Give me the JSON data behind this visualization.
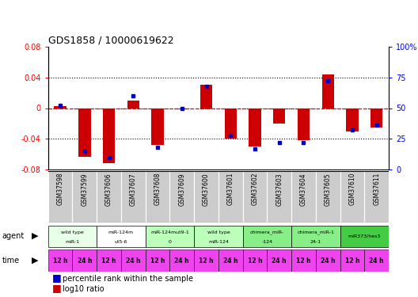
{
  "title": "GDS1858 / 10000619622",
  "samples": [
    "GSM37598",
    "GSM37599",
    "GSM37606",
    "GSM37607",
    "GSM37608",
    "GSM37609",
    "GSM37600",
    "GSM37601",
    "GSM37602",
    "GSM37603",
    "GSM37604",
    "GSM37605",
    "GSM37610",
    "GSM37611"
  ],
  "log10_ratio": [
    0.003,
    -0.063,
    -0.072,
    0.01,
    -0.048,
    -0.002,
    0.03,
    -0.04,
    -0.05,
    -0.02,
    -0.042,
    0.044,
    -0.03,
    -0.025
  ],
  "percentile_rank": [
    52,
    15,
    10,
    60,
    18,
    50,
    68,
    28,
    17,
    22,
    22,
    72,
    32,
    36
  ],
  "ylim": [
    -0.08,
    0.08
  ],
  "pct_ylim": [
    0,
    100
  ],
  "yticks_left": [
    -0.08,
    -0.04,
    0,
    0.04,
    0.08
  ],
  "yticks_right": [
    0,
    25,
    50,
    75,
    100
  ],
  "bar_color": "#cc0000",
  "dot_color": "#0000cc",
  "bar_width": 0.5,
  "agents": [
    {
      "label": "wild type\nmiR-1",
      "start": 0,
      "end": 2,
      "color": "#e8ffe8"
    },
    {
      "label": "miR-124m\nut5-6",
      "start": 2,
      "end": 4,
      "color": "#ffffff"
    },
    {
      "label": "miR-124mut9-1\n0",
      "start": 4,
      "end": 6,
      "color": "#bbffbb"
    },
    {
      "label": "wild type\nmiR-124",
      "start": 6,
      "end": 8,
      "color": "#bbffbb"
    },
    {
      "label": "chimera_miR-\n-124",
      "start": 8,
      "end": 10,
      "color": "#88ee88"
    },
    {
      "label": "chimera_miR-1\n24-1",
      "start": 10,
      "end": 12,
      "color": "#88ee88"
    },
    {
      "label": "miR373/hes3",
      "start": 12,
      "end": 14,
      "color": "#44cc44"
    }
  ],
  "times": [
    "12 h",
    "24 h",
    "12 h",
    "24 h",
    "12 h",
    "24 h",
    "12 h",
    "24 h",
    "12 h",
    "24 h",
    "12 h",
    "24 h",
    "12 h",
    "24 h"
  ],
  "time_color": "#ee44ee",
  "time_alt_color": "#dd22dd",
  "gsm_bg": "#cccccc",
  "gsm_border": "#aaaaaa",
  "legend_colors": [
    "#cc0000",
    "#0000cc"
  ],
  "legend_labels": [
    "log10 ratio",
    "percentile rank within the sample"
  ]
}
